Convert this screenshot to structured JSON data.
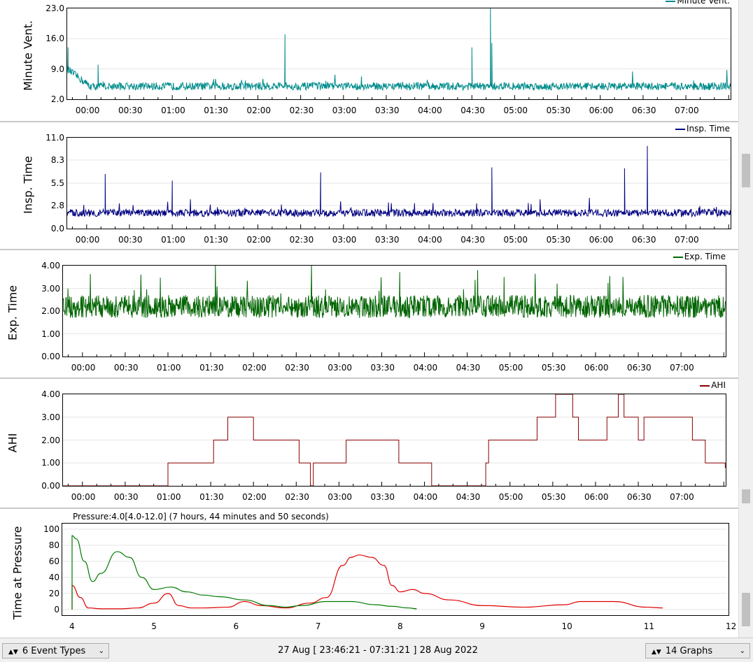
{
  "colors": {
    "minute_vent": "#008b8b",
    "insp_time": "#000080",
    "exp_time": "#006400",
    "ahi": "#8b0000",
    "pressure_red": "#e00000",
    "pressure_green": "#007a00"
  },
  "time_ticks": [
    "00:00",
    "00:30",
    "01:00",
    "01:30",
    "02:00",
    "02:30",
    "03:00",
    "03:30",
    "04:00",
    "04:30",
    "05:00",
    "05:30",
    "06:00",
    "06:30",
    "07:00"
  ],
  "minute_vent": {
    "ylabel": "Minute Vent.",
    "legend": "Minute Vent.",
    "yticks": [
      "23.0",
      "16.0",
      "9.0",
      "2.0"
    ]
  },
  "insp_time": {
    "ylabel": "Insp. Time",
    "legend": "Insp. Time",
    "yticks": [
      "11.0",
      "8.3",
      "5.5",
      "2.8",
      "0.0"
    ]
  },
  "exp_time": {
    "ylabel": "Exp. Time",
    "legend": "Exp. Time",
    "yticks": [
      "4.00",
      "3.00",
      "2.00",
      "1.00",
      "0.00"
    ]
  },
  "ahi": {
    "ylabel": "AHI",
    "legend": "AHI",
    "yticks": [
      "4.00",
      "3.00",
      "2.00",
      "1.00",
      "0.00"
    ]
  },
  "pressure": {
    "ylabel": "Time at Pressure",
    "title": "Pressure:4.0[4.0-12.0] (7 hours, 44 minutes and 50 seconds)",
    "yticks": [
      "100",
      "80",
      "60",
      "40",
      "20",
      "0"
    ],
    "xticks": [
      "4",
      "5",
      "6",
      "7",
      "8",
      "9",
      "10",
      "11",
      "12"
    ]
  },
  "chart_data": [
    {
      "type": "line",
      "title": "",
      "ylabel": "Minute Vent.",
      "ylim": [
        2,
        23
      ],
      "x_range": [
        "23:46:21",
        "07:31:21"
      ],
      "series": [
        {
          "name": "Minute Vent.",
          "description_baseline": 5.0,
          "spikes": [
            [
              "23:47",
              14
            ],
            [
              "00:08",
              10
            ],
            [
              "02:19",
              17
            ],
            [
              "04:30",
              14
            ],
            [
              "04:43",
              23
            ],
            [
              "04:44",
              15
            ]
          ]
        }
      ]
    },
    {
      "type": "line",
      "title": "",
      "ylabel": "Insp. Time",
      "ylim": [
        0,
        11
      ],
      "x_range": [
        "23:46:21",
        "07:31:21"
      ],
      "series": [
        {
          "name": "Insp. Time",
          "spikes": [
            [
              "00:13",
              6.6
            ],
            [
              "01:00",
              5.8
            ],
            [
              "02:44",
              6.8
            ],
            [
              "04:44",
              7.4
            ],
            [
              "06:17",
              7.3
            ],
            [
              "06:33",
              10.0
            ]
          ]
        }
      ]
    },
    {
      "type": "line",
      "title": "",
      "ylabel": "Exp. Time",
      "ylim": [
        0,
        4
      ],
      "x_range": [
        "23:46:21",
        "07:31:21"
      ],
      "series": [
        {
          "name": "Exp. Time"
        }
      ]
    },
    {
      "type": "line",
      "title": "",
      "ylabel": "AHI",
      "ylim": [
        0,
        4
      ],
      "x_range": [
        "23:46:21",
        "07:31:21"
      ],
      "series": [
        {
          "name": "AHI",
          "steps": [
            [
              "23:46",
              0
            ],
            [
              "01:00",
              1
            ],
            [
              "01:32",
              2
            ],
            [
              "01:42",
              3
            ],
            [
              "02:00",
              2
            ],
            [
              "02:32",
              1
            ],
            [
              "02:40",
              0
            ],
            [
              "02:42",
              1
            ],
            [
              "03:05",
              2
            ],
            [
              "03:42",
              1
            ],
            [
              "04:05",
              0
            ],
            [
              "04:43",
              1
            ],
            [
              "04:45",
              2
            ],
            [
              "05:19",
              3
            ],
            [
              "05:32",
              4
            ],
            [
              "05:44",
              3
            ],
            [
              "05:48",
              2
            ],
            [
              "06:08",
              3
            ],
            [
              "06:16",
              4
            ],
            [
              "06:20",
              3
            ],
            [
              "06:30",
              2
            ],
            [
              "06:34",
              3
            ],
            [
              "07:08",
              2
            ],
            [
              "07:17",
              1
            ],
            [
              "07:31",
              0.8
            ]
          ]
        }
      ]
    },
    {
      "type": "line",
      "title": "Pressure:4.0[4.0-12.0] (7 hours, 44 minutes and 50 seconds)",
      "ylabel": "Time at Pressure",
      "xlim": [
        4,
        12
      ],
      "ylim": [
        0,
        100
      ],
      "series": [
        {
          "x": [
            4.0,
            4.1,
            4.2,
            4.35,
            4.6,
            4.8,
            5.0,
            5.17,
            5.3,
            5.45,
            5.6,
            5.9,
            6.1,
            6.3,
            6.6,
            6.9,
            7.1,
            7.3,
            7.4,
            7.5,
            7.65,
            7.8,
            7.9,
            8.0,
            8.15,
            8.3,
            8.6,
            9.0,
            9.5,
            10.0,
            10.2,
            10.6,
            11.0,
            11.2
          ],
          "values": [
            30,
            15,
            2,
            1,
            1,
            2,
            8,
            20,
            5,
            2,
            2,
            3,
            10,
            5,
            2,
            8,
            15,
            55,
            65,
            68,
            65,
            55,
            30,
            22,
            25,
            20,
            12,
            5,
            3,
            6,
            10,
            10,
            3,
            2
          ]
        },
        {
          "x": [
            4.0,
            4.05,
            4.15,
            4.25,
            4.35,
            4.55,
            4.7,
            4.85,
            5.0,
            5.2,
            5.4,
            5.6,
            5.8,
            6.1,
            6.4,
            6.6,
            6.8,
            7.1,
            7.4,
            7.7,
            7.9,
            8.1,
            8.2
          ],
          "values": [
            92,
            88,
            60,
            35,
            45,
            72,
            65,
            40,
            25,
            28,
            22,
            18,
            16,
            12,
            5,
            3,
            5,
            10,
            10,
            6,
            4,
            2,
            1
          ]
        }
      ]
    }
  ],
  "controls": {
    "event_types": "6 Event Types",
    "date_range": "27 Aug [ 23:46:21 - 07:31:21 ] 28 Aug 2022",
    "graphs": "14 Graphs"
  }
}
